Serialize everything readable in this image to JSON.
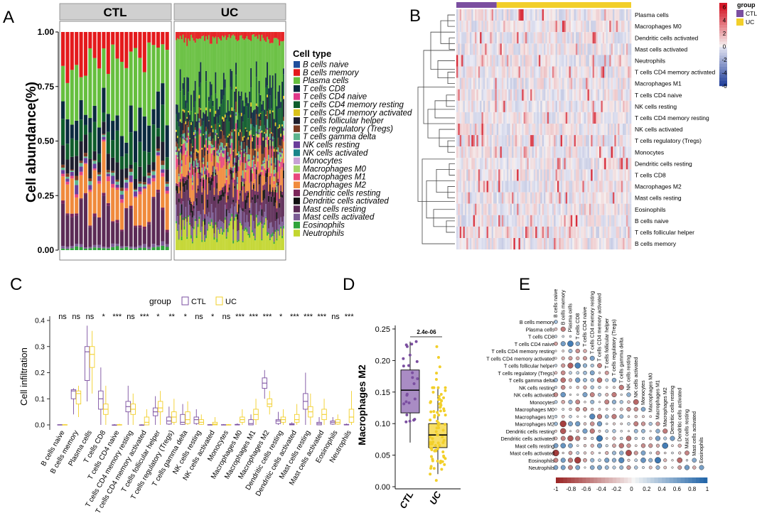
{
  "panel_labels": [
    "A",
    "B",
    "C",
    "D",
    "E"
  ],
  "colors": {
    "ctl": "#7b4fa0",
    "uc": "#f2cf2a",
    "strip_bg": "#d0d0d0"
  },
  "chart_data": [
    {
      "panel": "A",
      "type": "bar",
      "stacked": true,
      "ylabel": "Cell abundance(%)",
      "yticks": [
        "0.00",
        "0.25",
        "0.50",
        "0.75",
        "1.00"
      ],
      "ylim": [
        0,
        1
      ],
      "groups": [
        {
          "name": "CTL",
          "n": 24
        },
        {
          "name": "UC",
          "n": 80
        }
      ],
      "legend_title": "Cell type",
      "cell_types": [
        "B cells naive",
        "B cells memory",
        "Plasma cells",
        "T cells CD8",
        "T cells CD4 naive",
        "T cells CD4 memory resting",
        "T cells CD4 memory activated",
        "T cells follicular helper",
        "T cells regulatory (Tregs)",
        "T cells gamma delta",
        "NK cells resting",
        "NK cells activated",
        "Monocytes",
        "Macrophages M0",
        "Macrophages M1",
        "Macrophages M2",
        "Dendritic cells resting",
        "Dendritic cells activated",
        "Mast cells resting",
        "Mast cells activated",
        "Eosinophils",
        "Neutrophils"
      ],
      "cell_colors": [
        "#1f4e9c",
        "#e41a1c",
        "#66bf3e",
        "#0b2a3f",
        "#e0388a",
        "#0f5d2c",
        "#d9c21b",
        "#1e1e2e",
        "#7a3a22",
        "#5db58f",
        "#6a3d9a",
        "#19858a",
        "#c7a0d6",
        "#a4d36a",
        "#e8487c",
        "#f08a3c",
        "#7b2559",
        "#101010",
        "#5c2b56",
        "#7b5c94",
        "#2fa33a",
        "#c3d62f"
      ],
      "mean_fractions": {
        "CTL": [
          0.0,
          0.12,
          0.27,
          0.1,
          0.0,
          0.1,
          0.0,
          0.05,
          0.01,
          0.01,
          0.02,
          0.0,
          0.0,
          0.0,
          0.01,
          0.14,
          0.01,
          0.0,
          0.15,
          0.01,
          0.01,
          0.0
        ],
        "UC": [
          0.0,
          0.03,
          0.26,
          0.06,
          0.0,
          0.08,
          0.01,
          0.06,
          0.03,
          0.02,
          0.01,
          0.0,
          0.0,
          0.02,
          0.04,
          0.08,
          0.02,
          0.03,
          0.1,
          0.05,
          0.01,
          0.09
        ]
      }
    },
    {
      "panel": "B",
      "type": "heatmap",
      "legend_title": "group",
      "scale_ticks": [
        "6",
        "4",
        "2",
        "0",
        "-2",
        "-4",
        "-6"
      ],
      "group_legend": [
        "CTL",
        "UC"
      ],
      "rows": [
        "Plasma cells",
        "Macrophages M0",
        "Dendritic cells activated",
        "Mast cells activated",
        "Neutrophils",
        "T cells CD4 memory activated",
        "Macrophages M1",
        "T cells CD4 naive",
        "NK cells resting",
        "T cells CD4 memory resting",
        "NK cells activated",
        "T cells regulatory (Tregs)",
        "Monocytes",
        "Dendritic cells resting",
        "T cells CD8",
        "Macrophages M2",
        "Mast cells resting",
        "Eosinophils",
        "B cells naive",
        "T cells follicular helper",
        "B cells memory"
      ],
      "n_columns": 104,
      "n_ctl": 24
    },
    {
      "panel": "C",
      "type": "box",
      "ylabel": "Cell infiltration",
      "legend_title": "group",
      "legend": [
        "CTL",
        "UC"
      ],
      "yticks": [
        "0.0",
        "0.1",
        "0.2",
        "0.3",
        "0.4"
      ],
      "ylim": [
        0,
        0.42
      ],
      "categories": [
        "B cells naive",
        "B cells memory",
        "Plasma cells",
        "T cells CD8",
        "T cells CD4 naive",
        "T cells CD4 memory resting",
        "T cells CD4 memory activated",
        "T cells follicular helper",
        "T cells regulatory (Tregs)",
        "T cells gamma delta",
        "NK cells resting",
        "NK cells activated",
        "Monocytes",
        "Macrophages M0",
        "Macrophages M1",
        "Macrophages M2",
        "Dendritic cells resting",
        "Dendritic cells activated",
        "Mast cells resting",
        "Mast cells activated",
        "Eosinophils",
        "Neutrophils"
      ],
      "significance": [
        "ns",
        "ns",
        "ns",
        "*",
        "***",
        "ns",
        "***",
        "*",
        "**",
        "*",
        "ns",
        "*",
        "ns",
        "***",
        "***",
        "***",
        "*",
        "***",
        "***",
        "***",
        "ns",
        "***"
      ],
      "series": [
        {
          "name": "CTL",
          "boxes": [
            [
              0,
              0,
              0,
              0.001,
              0.002
            ],
            [
              0.04,
              0.1,
              0.13,
              0.135,
              0.14
            ],
            [
              0.09,
              0.17,
              0.28,
              0.3,
              0.38
            ],
            [
              0.0,
              0.06,
              0.1,
              0.13,
              0.22
            ],
            [
              0,
              0,
              0,
              0,
              0.003
            ],
            [
              0.0,
              0.05,
              0.07,
              0.09,
              0.15
            ],
            [
              0,
              0,
              0,
              0,
              0.002
            ],
            [
              0.0,
              0.035,
              0.05,
              0.065,
              0.11
            ],
            [
              0,
              0.003,
              0.015,
              0.03,
              0.07
            ],
            [
              0,
              0.002,
              0.01,
              0.04,
              0.08
            ],
            [
              0,
              0.005,
              0.02,
              0.03,
              0.06
            ],
            [
              0,
              0,
              0,
              0.001,
              0.003
            ],
            [
              0,
              0,
              0,
              0.001,
              0.003
            ],
            [
              0,
              0,
              0,
              0.002,
              0.006
            ],
            [
              0,
              0,
              0.005,
              0.02,
              0.04
            ],
            [
              0.1,
              0.14,
              0.16,
              0.18,
              0.21
            ],
            [
              0,
              0.005,
              0.015,
              0.02,
              0.05
            ],
            [
              0,
              0,
              0.002,
              0.005,
              0.01
            ],
            [
              0.0,
              0.06,
              0.09,
              0.12,
              0.2
            ],
            [
              0,
              0,
              0.005,
              0.01,
              0.03
            ],
            [
              0,
              0.003,
              0.01,
              0.015,
              0.03
            ],
            [
              0,
              0,
              0,
              0.002,
              0.005
            ]
          ]
        },
        {
          "name": "UC",
          "boxes": [
            [
              0,
              0,
              0,
              0.001,
              0.003
            ],
            [
              0.03,
              0.08,
              0.12,
              0.13,
              0.15
            ],
            [
              0.12,
              0.22,
              0.27,
              0.3,
              0.36
            ],
            [
              0.0,
              0.04,
              0.06,
              0.08,
              0.15
            ],
            [
              0,
              0,
              0,
              0.001,
              0.004
            ],
            [
              0.0,
              0.04,
              0.06,
              0.08,
              0.12
            ],
            [
              0,
              0,
              0.01,
              0.03,
              0.06
            ],
            [
              0.0,
              0.05,
              0.065,
              0.09,
              0.13
            ],
            [
              0,
              0.01,
              0.03,
              0.05,
              0.1
            ],
            [
              0,
              0.005,
              0.02,
              0.05,
              0.09
            ],
            [
              0,
              0.002,
              0.01,
              0.02,
              0.04
            ],
            [
              0,
              0,
              0.003,
              0.01,
              0.03
            ],
            [
              0,
              0,
              0,
              0.001,
              0.003
            ],
            [
              0,
              0.01,
              0.02,
              0.03,
              0.06
            ],
            [
              0,
              0.02,
              0.04,
              0.06,
              0.1
            ],
            [
              0.04,
              0.07,
              0.08,
              0.1,
              0.13
            ],
            [
              0,
              0.01,
              0.02,
              0.03,
              0.06
            ],
            [
              0,
              0.01,
              0.02,
              0.04,
              0.08
            ],
            [
              0.0,
              0.03,
              0.05,
              0.07,
              0.12
            ],
            [
              0,
              0.02,
              0.04,
              0.06,
              0.1
            ],
            [
              0,
              0.003,
              0.01,
              0.02,
              0.04
            ],
            [
              0,
              0.01,
              0.03,
              0.06,
              0.13
            ]
          ]
        }
      ]
    },
    {
      "panel": "D",
      "type": "box",
      "ylabel": "Macrophages M2",
      "categories": [
        "CTL",
        "UC"
      ],
      "yticks": [
        "0.00",
        "0.05",
        "0.10",
        "0.15",
        "0.20",
        "0.25"
      ],
      "ylim": [
        0,
        0.25
      ],
      "pvalue": "2.4e-06",
      "boxes": [
        [
          0.07,
          0.117,
          0.153,
          0.185,
          0.23
        ],
        [
          0.02,
          0.062,
          0.082,
          0.1,
          0.157
        ]
      ],
      "outliers": [
        [],
        [
          0.17,
          0.18,
          0.19,
          0.205,
          0.222,
          0.01
        ]
      ],
      "n_points": [
        24,
        80
      ]
    },
    {
      "panel": "E",
      "type": "correlation_matrix",
      "row_labels": [
        "B cells memory",
        "Plasma cells",
        "T cells CD8",
        "T cells CD4 naive",
        "T cells CD4 memory resting",
        "T cells CD4 memory activated",
        "T cells follicular helper",
        "T cells regulatory (Tregs)",
        "T cells gamma delta",
        "NK cells resting",
        "NK cells activated",
        "Monocytes",
        "Macrophages M0",
        "Macrophages M1",
        "Macrophages M2",
        "Dendritic cells resting",
        "Dendritic cells activated",
        "Mast cells resting",
        "Mast cells activated",
        "Eosinophils",
        "Neutrophils"
      ],
      "col_labels": [
        "B cells naive",
        "B cells memory",
        "Plasma cells",
        "T cells CD8",
        "T cells CD4 naive",
        "T cells CD4 memory resting",
        "T cells CD4 memory activated",
        "T cells follicular helper",
        "T cells regulatory (Tregs)",
        "T cells gamma delta",
        "NK cells resting",
        "NK cells activated",
        "Monocytes",
        "Macrophages M0",
        "Macrophages M1",
        "Macrophages M2",
        "Dendritic cells resting",
        "Dendritic cells activated",
        "Mast cells resting",
        "Mast cells activated",
        "Eosinophils"
      ],
      "scale_ticks": [
        "-1",
        "-0.8",
        "-0.6",
        "-0.4",
        "-0.2",
        "0",
        "0.2",
        "0.4",
        "0.6",
        "0.8",
        "1"
      ]
    }
  ]
}
